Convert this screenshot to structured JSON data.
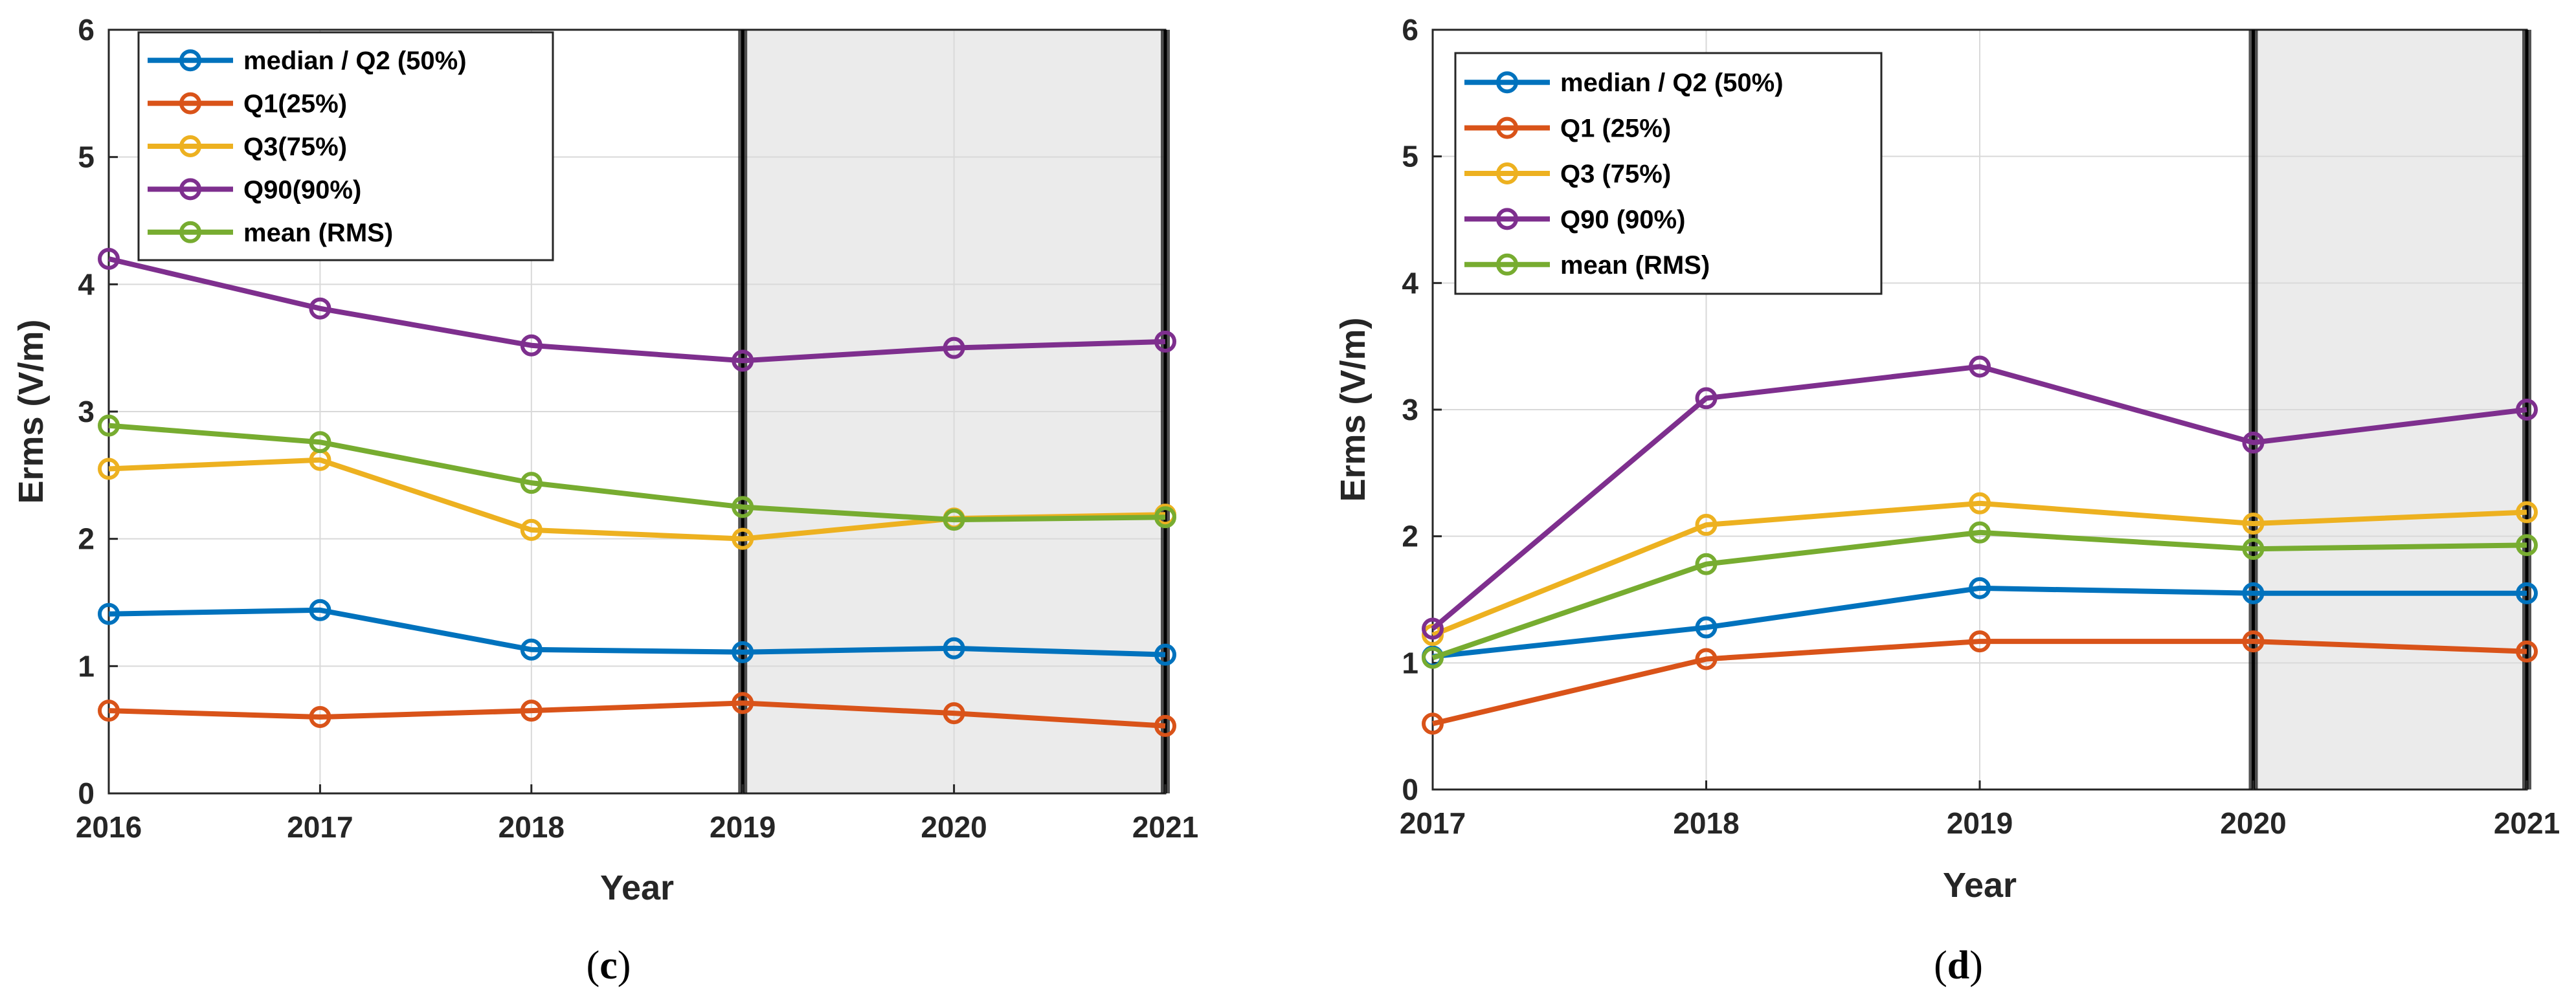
{
  "figure": {
    "panels": [
      {
        "caption": {
          "open": "(",
          "letter": "c",
          "close": ")"
        },
        "legend": [
          "median / Q2 (50%)",
          "Q1(25%)",
          "Q3(75%)",
          "Q90(90%)",
          "mean (RMS)"
        ],
        "yticks": [
          "0",
          "1",
          "2",
          "3",
          "4",
          "5",
          "6"
        ],
        "xticks": [
          "2016",
          "2017",
          "2018",
          "2019",
          "2020",
          "2021"
        ]
      },
      {
        "caption": {
          "open": "(",
          "letter": "d",
          "close": ")"
        },
        "legend": [
          "median / Q2 (50%)",
          "Q1 (25%)",
          "Q3 (75%)",
          "Q90 (90%)",
          "mean (RMS)"
        ],
        "yticks": [
          "0",
          "1",
          "2",
          "3",
          "4",
          "5",
          "6"
        ],
        "xticks": [
          "2017",
          "2018",
          "2019",
          "2020",
          "2021"
        ]
      }
    ]
  },
  "chart_data": [
    {
      "type": "line",
      "title": "",
      "xlabel": "Year",
      "ylabel": "Erms (V/m)",
      "x": [
        2016,
        2017,
        2018,
        2019,
        2020,
        2021
      ],
      "xlim": [
        2016,
        2021
      ],
      "ylim": [
        0,
        6
      ],
      "grid": true,
      "legend_position": "top-left",
      "shaded_region": [
        2019,
        2021
      ],
      "vertical_markers": [
        2019,
        2021
      ],
      "series": [
        {
          "name": "median / Q2 (50%)",
          "color": "#0072BD",
          "values": [
            1.41,
            1.44,
            1.13,
            1.11,
            1.14,
            1.09
          ]
        },
        {
          "name": "Q1(25%)",
          "color": "#D95319",
          "values": [
            0.65,
            0.6,
            0.65,
            0.71,
            0.63,
            0.53
          ]
        },
        {
          "name": "Q3(75%)",
          "color": "#EDB120",
          "values": [
            2.55,
            2.62,
            2.07,
            2.0,
            2.16,
            2.19
          ]
        },
        {
          "name": "Q90(90%)",
          "color": "#7E2F8E",
          "values": [
            4.2,
            3.81,
            3.52,
            3.4,
            3.5,
            3.55
          ]
        },
        {
          "name": "mean (RMS)",
          "color": "#77AC30",
          "values": [
            2.89,
            2.76,
            2.44,
            2.25,
            2.15,
            2.17
          ]
        }
      ]
    },
    {
      "type": "line",
      "title": "",
      "xlabel": "Year",
      "ylabel": "Erms (V/m)",
      "x": [
        2017,
        2018,
        2019,
        2020,
        2021
      ],
      "xlim": [
        2017,
        2021
      ],
      "ylim": [
        0,
        6
      ],
      "grid": true,
      "legend_position": "top-left",
      "shaded_region": [
        2020,
        2021
      ],
      "vertical_markers": [
        2020,
        2021
      ],
      "series": [
        {
          "name": "median / Q2 (50%)",
          "color": "#0072BD",
          "values": [
            1.05,
            1.28,
            1.59,
            1.55,
            1.55
          ]
        },
        {
          "name": "Q1 (25%)",
          "color": "#D95319",
          "values": [
            0.52,
            1.03,
            1.17,
            1.17,
            1.09
          ]
        },
        {
          "name": "Q3 (75%)",
          "color": "#EDB120",
          "values": [
            1.22,
            2.09,
            2.26,
            2.1,
            2.19
          ]
        },
        {
          "name": "Q90 (90%)",
          "color": "#7E2F8E",
          "values": [
            1.27,
            3.09,
            3.34,
            2.74,
            3.0
          ]
        },
        {
          "name": "mean (RMS)",
          "color": "#77AC30",
          "values": [
            1.04,
            1.78,
            2.03,
            1.9,
            1.93
          ]
        }
      ]
    }
  ]
}
